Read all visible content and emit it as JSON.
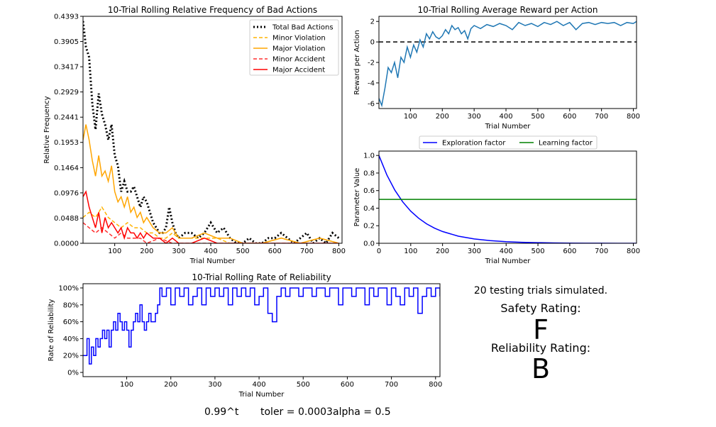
{
  "chart_data": [
    {
      "id": "bad_actions",
      "type": "line",
      "title": "10-Trial Rolling Relative Frequency of Bad Actions",
      "xlabel": "Trial Number",
      "ylabel": "Relative Frequency",
      "xlim": [
        1,
        810
      ],
      "ylim": [
        0,
        0.4393
      ],
      "xticks": [
        100,
        200,
        300,
        400,
        500,
        600,
        700,
        800
      ],
      "yticks": [
        0.0,
        0.0488,
        0.0976,
        0.1464,
        0.1953,
        0.2441,
        0.2929,
        0.3417,
        0.3905,
        0.4393
      ],
      "ytick_labels": [
        "0.0000",
        "0.0488",
        "0.0976",
        "0.1464",
        "0.1953",
        "0.2441",
        "0.2929",
        "0.3417",
        "0.3905",
        "0.4393"
      ],
      "legend_position": "top-right",
      "series": [
        {
          "name": "Total Bad Actions",
          "color": "#000000",
          "style": "dotted",
          "x": [
            1,
            10,
            20,
            30,
            40,
            50,
            60,
            70,
            80,
            90,
            100,
            110,
            120,
            130,
            140,
            150,
            160,
            170,
            180,
            190,
            200,
            210,
            220,
            230,
            240,
            250,
            260,
            270,
            280,
            290,
            300,
            320,
            340,
            360,
            380,
            400,
            420,
            440,
            460,
            480,
            500,
            520,
            540,
            560,
            580,
            600,
            620,
            640,
            660,
            680,
            700,
            720,
            740,
            760,
            780,
            800
          ],
          "values": [
            0.43,
            0.38,
            0.36,
            0.27,
            0.22,
            0.29,
            0.25,
            0.23,
            0.2,
            0.23,
            0.17,
            0.15,
            0.1,
            0.12,
            0.1,
            0.1,
            0.11,
            0.09,
            0.07,
            0.09,
            0.08,
            0.06,
            0.04,
            0.03,
            0.02,
            0.02,
            0.03,
            0.07,
            0.04,
            0.02,
            0.01,
            0.02,
            0.02,
            0.01,
            0.02,
            0.04,
            0.02,
            0.03,
            0.01,
            0.0,
            0.0,
            0.01,
            0.0,
            0.0,
            0.01,
            0.01,
            0.02,
            0.01,
            0.0,
            0.01,
            0.02,
            0.0,
            0.01,
            0.0,
            0.02,
            0.01
          ]
        },
        {
          "name": "Minor Violation",
          "color": "#ffb300",
          "style": "dashed",
          "x": [
            1,
            20,
            40,
            60,
            80,
            100,
            120,
            140,
            160,
            180,
            200,
            220,
            240,
            260,
            280,
            300,
            340,
            380,
            420,
            460,
            500,
            560,
            620,
            680,
            740,
            800
          ],
          "values": [
            0.05,
            0.06,
            0.05,
            0.07,
            0.05,
            0.04,
            0.03,
            0.04,
            0.03,
            0.03,
            0.02,
            0.02,
            0.01,
            0.01,
            0.02,
            0.01,
            0.01,
            0.01,
            0.01,
            0.0,
            0.0,
            0.0,
            0.01,
            0.0,
            0.01,
            0.0
          ]
        },
        {
          "name": "Major Violation",
          "color": "#ffa500",
          "style": "solid",
          "x": [
            1,
            10,
            20,
            30,
            40,
            50,
            60,
            70,
            80,
            90,
            100,
            110,
            120,
            130,
            140,
            150,
            160,
            170,
            180,
            190,
            200,
            220,
            240,
            260,
            280,
            300,
            340,
            380,
            420,
            460,
            500,
            560,
            620,
            680,
            740,
            800
          ],
          "values": [
            0.2,
            0.23,
            0.2,
            0.16,
            0.13,
            0.17,
            0.13,
            0.14,
            0.12,
            0.15,
            0.1,
            0.08,
            0.09,
            0.07,
            0.09,
            0.06,
            0.07,
            0.05,
            0.06,
            0.04,
            0.05,
            0.03,
            0.02,
            0.02,
            0.03,
            0.01,
            0.01,
            0.02,
            0.01,
            0.01,
            0.0,
            0.0,
            0.01,
            0.0,
            0.01,
            0.0
          ]
        },
        {
          "name": "Minor Accident",
          "color": "#ff3030",
          "style": "dashed",
          "x": [
            1,
            20,
            40,
            60,
            80,
            100,
            120,
            140,
            160,
            180,
            200,
            240,
            280,
            320,
            400,
            500,
            600,
            700,
            800
          ],
          "values": [
            0.04,
            0.03,
            0.02,
            0.03,
            0.02,
            0.01,
            0.02,
            0.01,
            0.01,
            0.01,
            0.0,
            0.01,
            0.0,
            0.0,
            0.0,
            0.0,
            0.0,
            0.0,
            0.0
          ]
        },
        {
          "name": "Major Accident",
          "color": "#ff0000",
          "style": "solid",
          "x": [
            1,
            10,
            20,
            30,
            40,
            50,
            60,
            70,
            80,
            90,
            100,
            110,
            120,
            130,
            140,
            150,
            160,
            170,
            180,
            190,
            200,
            220,
            240,
            260,
            280,
            300,
            340,
            380,
            420,
            460,
            500,
            560,
            620,
            680,
            740,
            800
          ],
          "values": [
            0.09,
            0.1,
            0.07,
            0.05,
            0.03,
            0.06,
            0.02,
            0.05,
            0.03,
            0.04,
            0.03,
            0.02,
            0.03,
            0.01,
            0.03,
            0.02,
            0.02,
            0.01,
            0.02,
            0.01,
            0.02,
            0.01,
            0.01,
            0.0,
            0.01,
            0.0,
            0.0,
            0.01,
            0.0,
            0.0,
            0.0,
            0.0,
            0.0,
            0.0,
            0.0,
            0.0
          ]
        }
      ]
    },
    {
      "id": "avg_reward",
      "type": "line",
      "title": "10-Trial Rolling Average Reward per Action",
      "xlabel": "Trial Number",
      "ylabel": "Reward per Action",
      "xlim": [
        1,
        810
      ],
      "ylim": [
        -6.5,
        2.5
      ],
      "xticks": [
        100,
        200,
        300,
        400,
        500,
        600,
        700,
        800
      ],
      "yticks": [
        -6,
        -4,
        -2,
        0,
        2
      ],
      "hline": {
        "y": 0,
        "color": "#000000",
        "style": "dashed"
      },
      "series": [
        {
          "name": "",
          "color": "#1f77b4",
          "style": "solid",
          "x": [
            1,
            10,
            20,
            30,
            40,
            50,
            60,
            70,
            80,
            90,
            100,
            110,
            120,
            130,
            140,
            150,
            160,
            170,
            180,
            190,
            200,
            210,
            220,
            230,
            240,
            250,
            260,
            270,
            280,
            290,
            300,
            320,
            340,
            360,
            380,
            400,
            420,
            440,
            460,
            480,
            500,
            520,
            540,
            560,
            580,
            600,
            620,
            640,
            660,
            680,
            700,
            720,
            740,
            760,
            780,
            800,
            810
          ],
          "values": [
            -5.5,
            -6.2,
            -4.5,
            -2.5,
            -3.0,
            -2.0,
            -3.5,
            -1.5,
            -2.0,
            -0.5,
            -1.5,
            -0.3,
            -1.0,
            0.2,
            -0.5,
            0.8,
            0.3,
            1.0,
            0.5,
            0.3,
            0.6,
            1.2,
            0.8,
            1.6,
            1.2,
            1.4,
            0.8,
            1.1,
            0.3,
            1.3,
            1.6,
            1.3,
            1.7,
            1.5,
            1.8,
            1.6,
            1.2,
            1.9,
            1.6,
            1.8,
            1.5,
            1.9,
            1.7,
            2.0,
            1.6,
            1.9,
            1.2,
            1.8,
            1.9,
            1.7,
            1.9,
            1.8,
            1.9,
            1.6,
            1.9,
            1.8,
            2.0
          ]
        }
      ]
    },
    {
      "id": "parameters",
      "type": "line",
      "xlabel": "Trial Number",
      "ylabel": "Parameter Value",
      "xlim": [
        0,
        810
      ],
      "ylim": [
        0,
        1.05
      ],
      "xticks": [
        0,
        100,
        200,
        300,
        400,
        500,
        600,
        700,
        800
      ],
      "yticks": [
        0.0,
        0.2,
        0.4,
        0.6,
        0.8,
        1.0
      ],
      "ytick_labels": [
        "0.0",
        "0.2",
        "0.4",
        "0.6",
        "0.8",
        "1.0"
      ],
      "legend_position": "above",
      "series": [
        {
          "name": "Exploration factor",
          "color": "#0000ff",
          "style": "solid",
          "x": [
            0,
            25,
            50,
            75,
            100,
            125,
            150,
            175,
            200,
            250,
            300,
            350,
            400,
            450,
            500,
            550,
            600,
            650,
            700,
            750,
            800,
            810
          ],
          "values": [
            1.0,
            0.778,
            0.605,
            0.471,
            0.366,
            0.285,
            0.221,
            0.172,
            0.134,
            0.081,
            0.049,
            0.03,
            0.018,
            0.011,
            0.007,
            0.004,
            0.002,
            0.001,
            0.001,
            0.0,
            0.0,
            0.0
          ]
        },
        {
          "name": "Learning factor",
          "color": "#008000",
          "style": "solid",
          "x": [
            0,
            810
          ],
          "values": [
            0.5,
            0.5
          ]
        }
      ]
    },
    {
      "id": "reliability",
      "type": "line",
      "title": "10-Trial Rolling Rate of Reliability",
      "xlabel": "Trial Number",
      "ylabel": "Rate of Reliability",
      "xlim": [
        1,
        810
      ],
      "ylim": [
        -5,
        105
      ],
      "xticks": [
        100,
        200,
        300,
        400,
        500,
        600,
        700,
        800
      ],
      "yticks": [
        0,
        20,
        40,
        60,
        80,
        100
      ],
      "ytick_labels": [
        "0%",
        "20%",
        "40%",
        "60%",
        "80%",
        "100%"
      ],
      "series": [
        {
          "name": "",
          "color": "#0000ff",
          "style": "step",
          "x": [
            1,
            10,
            15,
            20,
            25,
            30,
            35,
            40,
            45,
            50,
            55,
            60,
            65,
            70,
            75,
            80,
            85,
            90,
            95,
            100,
            105,
            110,
            115,
            120,
            125,
            130,
            135,
            140,
            145,
            150,
            155,
            160,
            165,
            170,
            175,
            180,
            190,
            200,
            210,
            220,
            230,
            240,
            250,
            260,
            270,
            280,
            290,
            300,
            310,
            320,
            330,
            340,
            350,
            360,
            370,
            380,
            390,
            400,
            410,
            420,
            430,
            440,
            450,
            460,
            470,
            480,
            490,
            500,
            510,
            520,
            530,
            540,
            550,
            560,
            570,
            580,
            590,
            600,
            610,
            620,
            630,
            640,
            650,
            660,
            670,
            680,
            690,
            700,
            710,
            720,
            730,
            740,
            750,
            760,
            770,
            780,
            790,
            800,
            810
          ],
          "values": [
            20,
            40,
            10,
            30,
            20,
            40,
            30,
            40,
            50,
            40,
            50,
            30,
            50,
            60,
            50,
            70,
            60,
            50,
            60,
            50,
            30,
            50,
            60,
            70,
            60,
            80,
            60,
            50,
            60,
            70,
            60,
            60,
            70,
            80,
            100,
            90,
            100,
            80,
            100,
            90,
            100,
            80,
            90,
            100,
            80,
            100,
            90,
            100,
            90,
            100,
            80,
            100,
            90,
            100,
            90,
            100,
            80,
            90,
            100,
            70,
            60,
            90,
            100,
            90,
            100,
            100,
            90,
            100,
            100,
            90,
            100,
            100,
            90,
            100,
            100,
            80,
            100,
            100,
            90,
            100,
            100,
            80,
            100,
            90,
            100,
            100,
            80,
            100,
            90,
            80,
            100,
            90,
            100,
            70,
            90,
            100,
            90,
            100,
            90
          ]
        }
      ]
    }
  ],
  "summary": {
    "trials_text": "20 testing trials simulated.",
    "safety_label": "Safety Rating:",
    "safety_grade": "F",
    "safety_color": "#ff0000",
    "reliability_label": "Reliability Rating:",
    "reliability_grade": "B",
    "reliability_color": "#008000"
  },
  "footer": {
    "decay": "0.99^t",
    "tolerance": "toler = 0.0003",
    "alpha": "alpha = 0.5"
  }
}
